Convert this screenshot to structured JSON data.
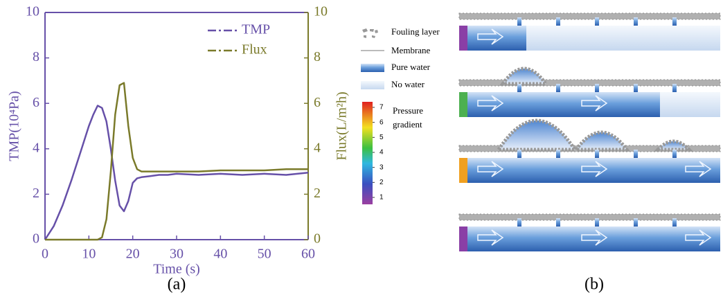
{
  "chart_data": {
    "type": "line",
    "x_label": "Time (s)",
    "y_label": "TMP(10⁴Pa)",
    "y2_label": "Flux(L/m²h)",
    "panel_label": "(a)",
    "x": [
      0,
      2,
      4,
      6,
      8,
      10,
      11,
      12,
      13,
      14,
      15,
      16,
      17,
      18,
      19,
      20,
      21,
      22,
      24,
      26,
      28,
      30,
      35,
      40,
      45,
      50,
      55,
      60
    ],
    "series": [
      {
        "name": "TMP",
        "color": "#6650a8",
        "values": [
          0,
          0.6,
          1.5,
          2.6,
          3.8,
          5.0,
          5.5,
          5.9,
          5.8,
          5.2,
          4.0,
          2.6,
          1.5,
          1.25,
          1.7,
          2.5,
          2.7,
          2.75,
          2.8,
          2.85,
          2.85,
          2.9,
          2.85,
          2.9,
          2.85,
          2.9,
          2.85,
          2.95
        ]
      },
      {
        "name": "Flux",
        "color": "#7a7a2a",
        "axis": "y2",
        "values": [
          0,
          0,
          0,
          0,
          0,
          0,
          0,
          0,
          0.1,
          0.9,
          3.0,
          5.5,
          6.8,
          6.9,
          5.0,
          3.6,
          3.1,
          3.0,
          3.0,
          3.0,
          3.0,
          3.0,
          3.0,
          3.05,
          3.05,
          3.05,
          3.1,
          3.1
        ]
      }
    ],
    "xlim": [
      0,
      60
    ],
    "xticks": [
      0,
      10,
      20,
      30,
      40,
      50,
      60
    ],
    "ylim": [
      0,
      10
    ],
    "yticks": [
      0,
      2,
      4,
      6,
      8,
      10
    ],
    "y2lim": [
      0,
      10
    ],
    "y2ticks": [
      0,
      2,
      4,
      6,
      8,
      10
    ],
    "legend": "upper right"
  },
  "diagram": {
    "legend": [
      "Fouling layer",
      "Membrane",
      "Pure water",
      "No water"
    ],
    "pressure_label": [
      "Pressure",
      "gradient"
    ],
    "colorbar_ticks": [
      1,
      2,
      3,
      4,
      5,
      6,
      7
    ],
    "panel_label": "(b)"
  }
}
